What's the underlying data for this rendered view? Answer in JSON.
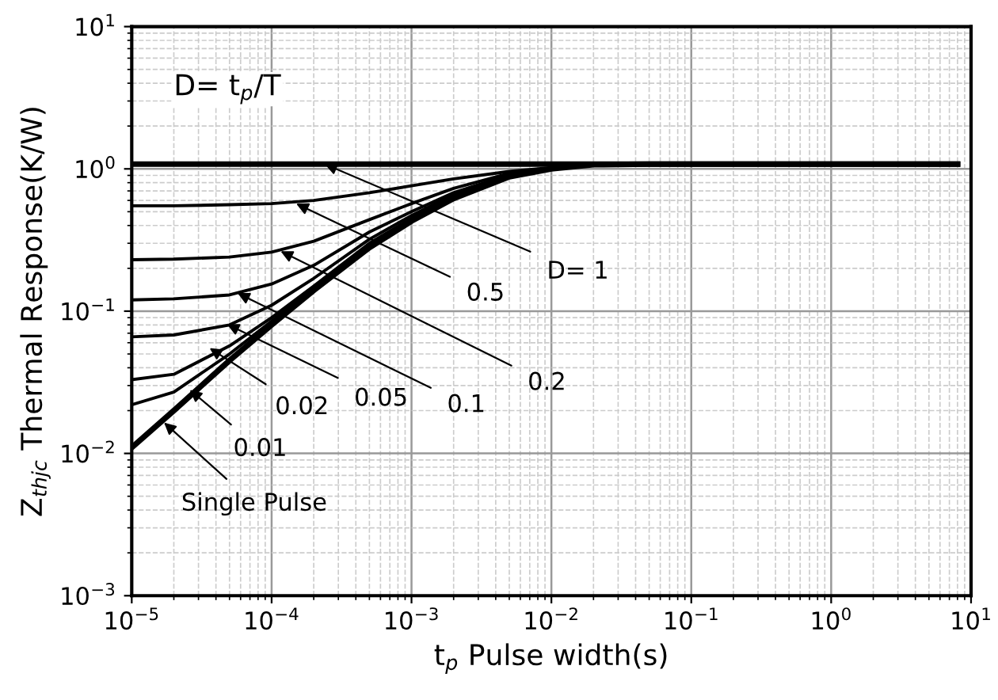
{
  "chart_data": {
    "type": "line",
    "xlabel": "t$_{p}$ Pulse width(s)",
    "ylabel": "Z$_{thjc}$ Thermal Response(K/W)",
    "log": "xy",
    "grid": true,
    "marker": "none",
    "line_style": "solid",
    "x": [
      1e-05,
      2e-05,
      5e-05,
      0.0001,
      0.0002,
      0.0005,
      0.001,
      0.002,
      0.005,
      0.01,
      0.02,
      0.05,
      8
    ],
    "series": [
      {
        "color": "#000000",
        "values": [
          1.08,
          1.08,
          1.08,
          1.08,
          1.08,
          1.08,
          1.08,
          1.08,
          1.08,
          1.08,
          1.08,
          1.08,
          1.08
        ]
      },
      {
        "color": "#000000",
        "values": [
          0.55,
          0.55,
          0.56,
          0.57,
          0.6,
          0.68,
          0.76,
          0.85,
          0.96,
          1.02,
          1.07,
          1.08,
          1.08
        ]
      },
      {
        "color": "#000000",
        "values": [
          0.23,
          0.232,
          0.24,
          0.26,
          0.31,
          0.44,
          0.57,
          0.73,
          0.93,
          1.01,
          1.07,
          1.08,
          1.08
        ]
      },
      {
        "color": "#000000",
        "values": [
          0.12,
          0.122,
          0.13,
          0.155,
          0.21,
          0.36,
          0.5,
          0.68,
          0.91,
          1.0,
          1.07,
          1.08,
          1.08
        ]
      },
      {
        "color": "#000000",
        "values": [
          0.066,
          0.068,
          0.08,
          0.11,
          0.17,
          0.32,
          0.47,
          0.66,
          0.9,
          1.0,
          1.07,
          1.08,
          1.08
        ]
      },
      {
        "color": "#000000",
        "values": [
          0.033,
          0.036,
          0.057,
          0.09,
          0.15,
          0.3,
          0.45,
          0.64,
          0.89,
          1.0,
          1.07,
          1.08,
          1.08
        ]
      },
      {
        "color": "#000000",
        "values": [
          0.022,
          0.027,
          0.05,
          0.085,
          0.145,
          0.29,
          0.44,
          0.63,
          0.88,
          1.0,
          1.07,
          1.08,
          1.08
        ]
      },
      {
        "color": "#000000",
        "values": [
          0.011,
          0.02,
          0.045,
          0.08,
          0.14,
          0.28,
          0.43,
          0.62,
          0.88,
          1.0,
          1.07,
          1.08,
          1.08
        ]
      }
    ],
    "annotations": [
      "D= t$_{p}$/T",
      {
        "text": "D= 1",
        "x": 0.00024,
        "y": 1.08
      },
      {
        "text": "0.5",
        "x": 0.00015,
        "y": 0.57
      },
      {
        "text": "0.2",
        "x": 0.000116,
        "y": 0.264
      },
      {
        "text": "0.1",
        "x": 5.7e-05,
        "y": 0.134
      },
      {
        "text": "0.05",
        "x": 4.8e-05,
        "y": 0.081
      },
      {
        "text": "0.02",
        "x": 3.6e-05,
        "y": 0.055
      },
      {
        "text": "0.01",
        "x": 2.6e-05,
        "y": 0.028
      },
      {
        "text": "Single Pulse",
        "x": 1.7e-05,
        "y": 0.0165
      }
    ],
    "xlim": [
      1e-05,
      10
    ],
    "xticks": [
      {
        "value": 1e-05,
        "label": "10$^{−5}$"
      },
      {
        "value": 0.0001,
        "label": "10$^{−4}$"
      },
      {
        "value": 0.001,
        "label": "10$^{−3}$"
      },
      {
        "value": 0.01,
        "label": "10$^{−2}$"
      },
      {
        "value": 0.1,
        "label": "10$^{−1}$"
      },
      {
        "value": 1,
        "label": "10$^{0}$"
      },
      {
        "value": 10,
        "label": "10$^{1}$"
      }
    ],
    "ylim": [
      0.001,
      10
    ],
    "yticks": [
      {
        "value": 0.001,
        "label": "10$^{−3}$"
      },
      {
        "value": 0.01,
        "label": "10$^{−2}$"
      },
      {
        "value": 0.1,
        "label": "10$^{−1}$"
      },
      {
        "value": 1,
        "label": "10$^{0}$"
      },
      {
        "value": 10,
        "label": "10$^{1}$"
      }
    ]
  }
}
